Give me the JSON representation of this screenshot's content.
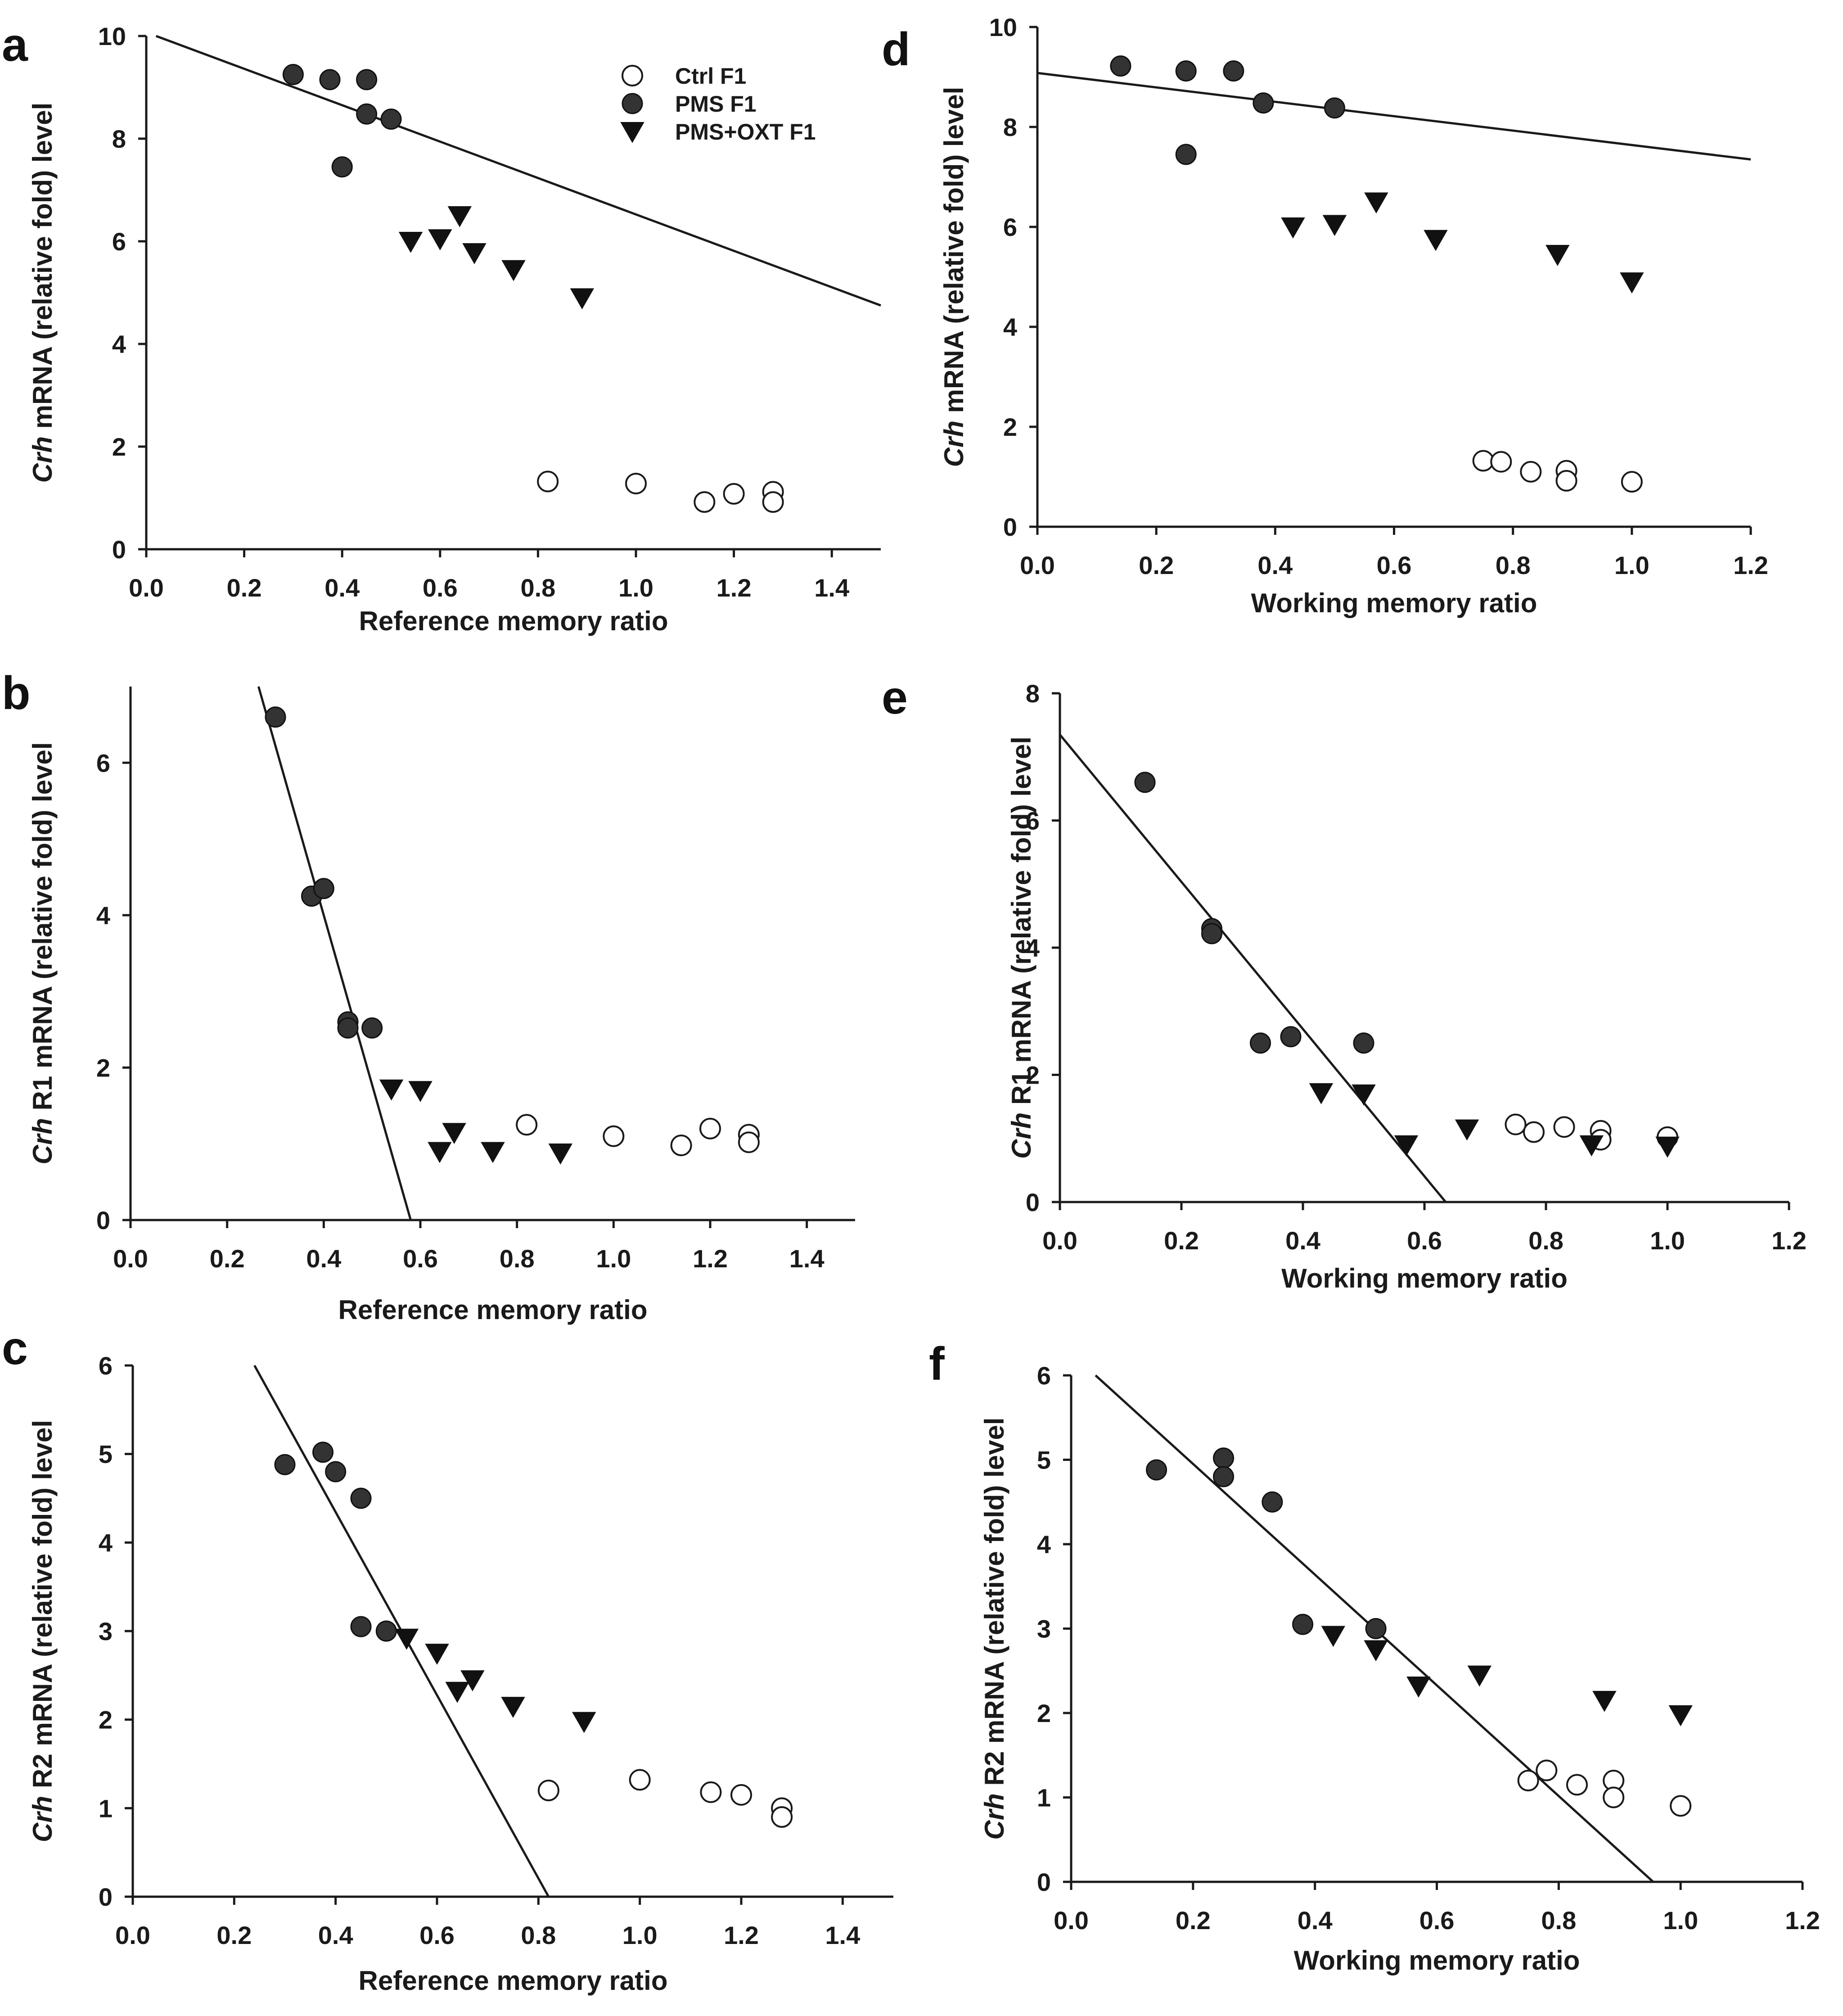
{
  "colors": {
    "ink": "#1a1a1a",
    "filled_marker": "#333333",
    "open_marker_fill": "#ffffff"
  },
  "legend": [
    {
      "label": "Ctrl F1",
      "marker": "open-circle"
    },
    {
      "label": "PMS F1",
      "marker": "filled-circle"
    },
    {
      "label": "PMS+OXT F1",
      "marker": "filled-triangle-down"
    }
  ],
  "chart_data": [
    {
      "panel": "a",
      "type": "scatter",
      "xlabel": "Reference memory ratio",
      "ylabel_italic": "Crh",
      "ylabel_rest": " mRNA (relative fold) level",
      "xlim": [
        0,
        1.5
      ],
      "ylim": [
        0,
        10
      ],
      "xticks": [
        "0.0",
        "0.2",
        "0.4",
        "0.6",
        "0.8",
        "1.0",
        "1.2",
        "1.4"
      ],
      "yticks": [
        "0",
        "2",
        "4",
        "6",
        "8",
        "10"
      ],
      "fit_line": [
        [
          0.02,
          10.0
        ],
        [
          1.5,
          4.75
        ]
      ],
      "series": [
        {
          "name": "Ctrl F1",
          "marker": "open-circle",
          "points": [
            [
              0.82,
              1.32
            ],
            [
              1.0,
              1.28
            ],
            [
              1.14,
              0.92
            ],
            [
              1.2,
              1.08
            ],
            [
              1.28,
              1.12
            ],
            [
              1.28,
              0.92
            ]
          ]
        },
        {
          "name": "PMS F1",
          "marker": "filled-circle",
          "points": [
            [
              0.3,
              9.25
            ],
            [
              0.375,
              9.15
            ],
            [
              0.45,
              9.15
            ],
            [
              0.45,
              8.48
            ],
            [
              0.5,
              8.38
            ],
            [
              0.4,
              7.45
            ]
          ]
        },
        {
          "name": "PMS+OXT F1",
          "marker": "filled-triangle-down",
          "points": [
            [
              0.54,
              6.0
            ],
            [
              0.6,
              6.05
            ],
            [
              0.64,
              6.5
            ],
            [
              0.67,
              5.78
            ],
            [
              0.75,
              5.45
            ],
            [
              0.89,
              4.9
            ]
          ]
        }
      ]
    },
    {
      "panel": "b",
      "type": "scatter",
      "xlabel": "Reference memory ratio",
      "ylabel_italic": "Crh",
      "ylabel_rest": " R1 mRNA (relative fold) level",
      "xlim": [
        0,
        1.5
      ],
      "ylim": [
        0,
        7
      ],
      "xticks": [
        "0.0",
        "0.2",
        "0.4",
        "0.6",
        "0.8",
        "1.0",
        "1.2",
        "1.4"
      ],
      "yticks": [
        "0",
        "2",
        "4",
        "6"
      ],
      "fit_line": [
        [
          0.265,
          7.0
        ],
        [
          0.58,
          0.0
        ]
      ],
      "series": [
        {
          "name": "Ctrl F1",
          "marker": "open-circle",
          "points": [
            [
              0.82,
              1.25
            ],
            [
              1.0,
              1.1
            ],
            [
              1.14,
              0.98
            ],
            [
              1.2,
              1.2
            ],
            [
              1.28,
              1.12
            ],
            [
              1.28,
              1.02
            ]
          ]
        },
        {
          "name": "PMS F1",
          "marker": "filled-circle",
          "points": [
            [
              0.3,
              6.6
            ],
            [
              0.375,
              4.25
            ],
            [
              0.4,
              4.35
            ],
            [
              0.45,
              2.6
            ],
            [
              0.45,
              2.52
            ],
            [
              0.5,
              2.52
            ]
          ]
        },
        {
          "name": "PMS+OXT F1",
          "marker": "filled-triangle-down",
          "points": [
            [
              0.54,
              1.72
            ],
            [
              0.6,
              1.7
            ],
            [
              0.64,
              0.9
            ],
            [
              0.67,
              1.15
            ],
            [
              0.75,
              0.9
            ],
            [
              0.89,
              0.88
            ]
          ]
        }
      ]
    },
    {
      "panel": "c",
      "type": "scatter",
      "xlabel": "Reference memory ratio",
      "ylabel_italic": "Crh",
      "ylabel_rest": " R2 mRNA (relative fold) level",
      "xlim": [
        0,
        1.5
      ],
      "ylim": [
        0,
        6
      ],
      "xticks": [
        "0.0",
        "0.2",
        "0.4",
        "0.6",
        "0.8",
        "1.0",
        "1.2",
        "1.4"
      ],
      "yticks": [
        "0",
        "1",
        "2",
        "3",
        "4",
        "5",
        "6"
      ],
      "fit_line": [
        [
          0.24,
          6.0
        ],
        [
          0.82,
          0.0
        ]
      ],
      "series": [
        {
          "name": "Ctrl F1",
          "marker": "open-circle",
          "points": [
            [
              0.82,
              1.2
            ],
            [
              1.0,
              1.32
            ],
            [
              1.14,
              1.18
            ],
            [
              1.2,
              1.15
            ],
            [
              1.28,
              1.0
            ],
            [
              1.28,
              0.9
            ]
          ]
        },
        {
          "name": "PMS F1",
          "marker": "filled-circle",
          "points": [
            [
              0.3,
              4.88
            ],
            [
              0.375,
              5.02
            ],
            [
              0.4,
              4.8
            ],
            [
              0.45,
              4.5
            ],
            [
              0.45,
              3.05
            ],
            [
              0.5,
              3.0
            ]
          ]
        },
        {
          "name": "PMS+OXT F1",
          "marker": "filled-triangle-down",
          "points": [
            [
              0.54,
              2.92
            ],
            [
              0.6,
              2.75
            ],
            [
              0.64,
              2.32
            ],
            [
              0.67,
              2.45
            ],
            [
              0.75,
              2.15
            ],
            [
              0.89,
              1.98
            ]
          ]
        }
      ]
    },
    {
      "panel": "d",
      "type": "scatter",
      "xlabel": "Working memory ratio",
      "ylabel_italic": "Crh",
      "ylabel_rest": " mRNA (relative fold) level",
      "xlim": [
        0,
        1.2
      ],
      "ylim": [
        0,
        10
      ],
      "xticks": [
        "0.0",
        "0.2",
        "0.4",
        "0.6",
        "0.8",
        "1.0",
        "1.2"
      ],
      "yticks": [
        "0",
        "2",
        "4",
        "6",
        "8",
        "10"
      ],
      "fit_line": [
        [
          0.0,
          9.08
        ],
        [
          1.2,
          7.35
        ]
      ],
      "series": [
        {
          "name": "Ctrl F1",
          "marker": "open-circle",
          "points": [
            [
              0.75,
              1.32
            ],
            [
              0.78,
              1.3
            ],
            [
              0.83,
              1.1
            ],
            [
              0.89,
              1.12
            ],
            [
              0.89,
              0.92
            ],
            [
              1.0,
              0.9
            ]
          ]
        },
        {
          "name": "PMS F1",
          "marker": "filled-circle",
          "points": [
            [
              0.14,
              9.22
            ],
            [
              0.25,
              9.12
            ],
            [
              0.33,
              9.12
            ],
            [
              0.38,
              8.48
            ],
            [
              0.5,
              8.38
            ],
            [
              0.25,
              7.45
            ]
          ]
        },
        {
          "name": "PMS+OXT F1",
          "marker": "filled-triangle-down",
          "points": [
            [
              0.43,
              6.0
            ],
            [
              0.5,
              6.05
            ],
            [
              0.57,
              6.5
            ],
            [
              0.67,
              5.75
            ],
            [
              0.875,
              5.45
            ],
            [
              1.0,
              4.9
            ]
          ]
        }
      ]
    },
    {
      "panel": "e",
      "type": "scatter",
      "xlabel": "Working memory ratio",
      "ylabel_italic": "Crh",
      "ylabel_rest": " R1 mRNA (relative fold) level",
      "xlim": [
        0,
        1.2
      ],
      "ylim": [
        0,
        8
      ],
      "xticks": [
        "0.0",
        "0.2",
        "0.4",
        "0.6",
        "0.8",
        "1.0",
        "1.2"
      ],
      "yticks": [
        "0",
        "2",
        "4",
        "6",
        "8"
      ],
      "fit_line": [
        [
          0.0,
          7.35
        ],
        [
          0.635,
          0.0
        ]
      ],
      "series": [
        {
          "name": "Ctrl F1",
          "marker": "open-circle",
          "points": [
            [
              0.75,
              1.22
            ],
            [
              0.78,
              1.1
            ],
            [
              0.83,
              1.18
            ],
            [
              0.89,
              1.12
            ],
            [
              0.89,
              0.98
            ],
            [
              1.0,
              1.02
            ]
          ]
        },
        {
          "name": "PMS F1",
          "marker": "filled-circle",
          "points": [
            [
              0.14,
              6.6
            ],
            [
              0.25,
              4.3
            ],
            [
              0.25,
              4.22
            ],
            [
              0.33,
              2.5
            ],
            [
              0.38,
              2.6
            ],
            [
              0.5,
              2.5
            ]
          ]
        },
        {
          "name": "PMS+OXT F1",
          "marker": "filled-triangle-down",
          "points": [
            [
              0.43,
              1.72
            ],
            [
              0.5,
              1.7
            ],
            [
              0.57,
              0.9
            ],
            [
              0.67,
              1.15
            ],
            [
              0.875,
              0.9
            ],
            [
              1.0,
              0.88
            ]
          ]
        }
      ]
    },
    {
      "panel": "f",
      "type": "scatter",
      "xlabel": "Working memory ratio",
      "ylabel_italic": "Crh",
      "ylabel_rest": " R2 mRNA (relative fold) level",
      "xlim": [
        0,
        1.2
      ],
      "ylim": [
        0,
        6
      ],
      "xticks": [
        "0.0",
        "0.2",
        "0.4",
        "0.6",
        "0.8",
        "1.0",
        "1.2"
      ],
      "yticks": [
        "0",
        "1",
        "2",
        "3",
        "4",
        "5",
        "6"
      ],
      "fit_line": [
        [
          0.04,
          6.0
        ],
        [
          0.955,
          0.0
        ]
      ],
      "series": [
        {
          "name": "Ctrl F1",
          "marker": "open-circle",
          "points": [
            [
              0.75,
              1.2
            ],
            [
              0.78,
              1.32
            ],
            [
              0.83,
              1.15
            ],
            [
              0.89,
              1.2
            ],
            [
              0.89,
              1.0
            ],
            [
              1.0,
              0.9
            ]
          ]
        },
        {
          "name": "PMS F1",
          "marker": "filled-circle",
          "points": [
            [
              0.14,
              4.88
            ],
            [
              0.25,
              5.02
            ],
            [
              0.25,
              4.8
            ],
            [
              0.33,
              4.5
            ],
            [
              0.38,
              3.05
            ],
            [
              0.5,
              3.0
            ]
          ]
        },
        {
          "name": "PMS+OXT F1",
          "marker": "filled-triangle-down",
          "points": [
            [
              0.43,
              2.92
            ],
            [
              0.5,
              2.75
            ],
            [
              0.57,
              2.32
            ],
            [
              0.67,
              2.45
            ],
            [
              0.875,
              2.15
            ],
            [
              1.0,
              1.98
            ]
          ]
        }
      ]
    }
  ]
}
